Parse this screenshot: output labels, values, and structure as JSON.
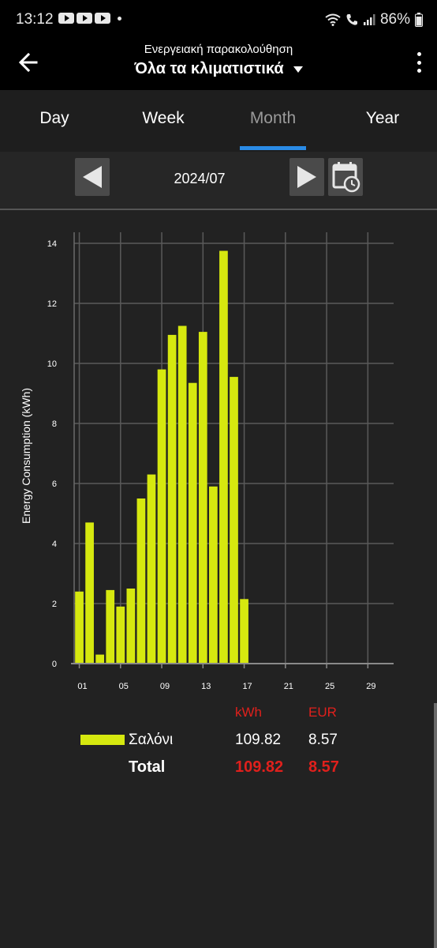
{
  "status_bar": {
    "time": "13:12",
    "battery": "86%",
    "icons": [
      "youtube-icon",
      "youtube-icon",
      "youtube-icon",
      "wifi-icon",
      "call-icon",
      "signal-icon"
    ]
  },
  "app_bar": {
    "subtitle": "Ενεργειακή παρακολούθηση",
    "title": "Όλα τα κλιματιστικά",
    "back_icon": "arrow-left-icon",
    "menu_icon": "more-vert-icon"
  },
  "tabs": [
    {
      "label": "Day",
      "active": false
    },
    {
      "label": "Week",
      "active": false
    },
    {
      "label": "Month",
      "active": true
    },
    {
      "label": "Year",
      "active": false
    }
  ],
  "accent_color": "#2a8be6",
  "period": {
    "label": "2024/07",
    "prev_icon": "triangle-left-icon",
    "next_icon": "triangle-right-icon",
    "calendar_icon": "calendar-clock-icon"
  },
  "chart_data": {
    "type": "bar",
    "ylabel": "Energy Consumption (kWh)",
    "xlabel": "",
    "ylim": [
      0,
      14
    ],
    "xlim": [
      0.5,
      31.5
    ],
    "y_ticks": [
      "0",
      "2",
      "4",
      "6",
      "8",
      "10",
      "12",
      "14"
    ],
    "x_ticks": [
      {
        "day": 1,
        "label": "01"
      },
      {
        "day": 5,
        "label": "05"
      },
      {
        "day": 9,
        "label": "09"
      },
      {
        "day": 13,
        "label": "13"
      },
      {
        "day": 17,
        "label": "17"
      },
      {
        "day": 21,
        "label": "21"
      },
      {
        "day": 25,
        "label": "25"
      },
      {
        "day": 29,
        "label": "29"
      }
    ],
    "grid": true,
    "bar_color": "#d6e80f",
    "series": [
      {
        "name": "Σαλόνι",
        "days": [
          1,
          2,
          3,
          4,
          5,
          6,
          7,
          8,
          9,
          10,
          11,
          12,
          13,
          14,
          15,
          16,
          17
        ],
        "values": [
          2.4,
          4.7,
          0.3,
          2.45,
          1.9,
          2.5,
          5.5,
          6.3,
          9.8,
          10.95,
          11.25,
          9.35,
          11.05,
          5.9,
          13.75,
          9.55,
          2.15
        ]
      }
    ]
  },
  "totals": {
    "unit_kwh": "kWh",
    "unit_eur": "EUR",
    "rows": [
      {
        "name": "Σαλόνι",
        "kwh": "109.82",
        "eur": "8.57"
      }
    ],
    "total": {
      "label": "Total",
      "kwh": "109.82",
      "eur": "8.57"
    },
    "highlight_color": "#e0201c"
  }
}
